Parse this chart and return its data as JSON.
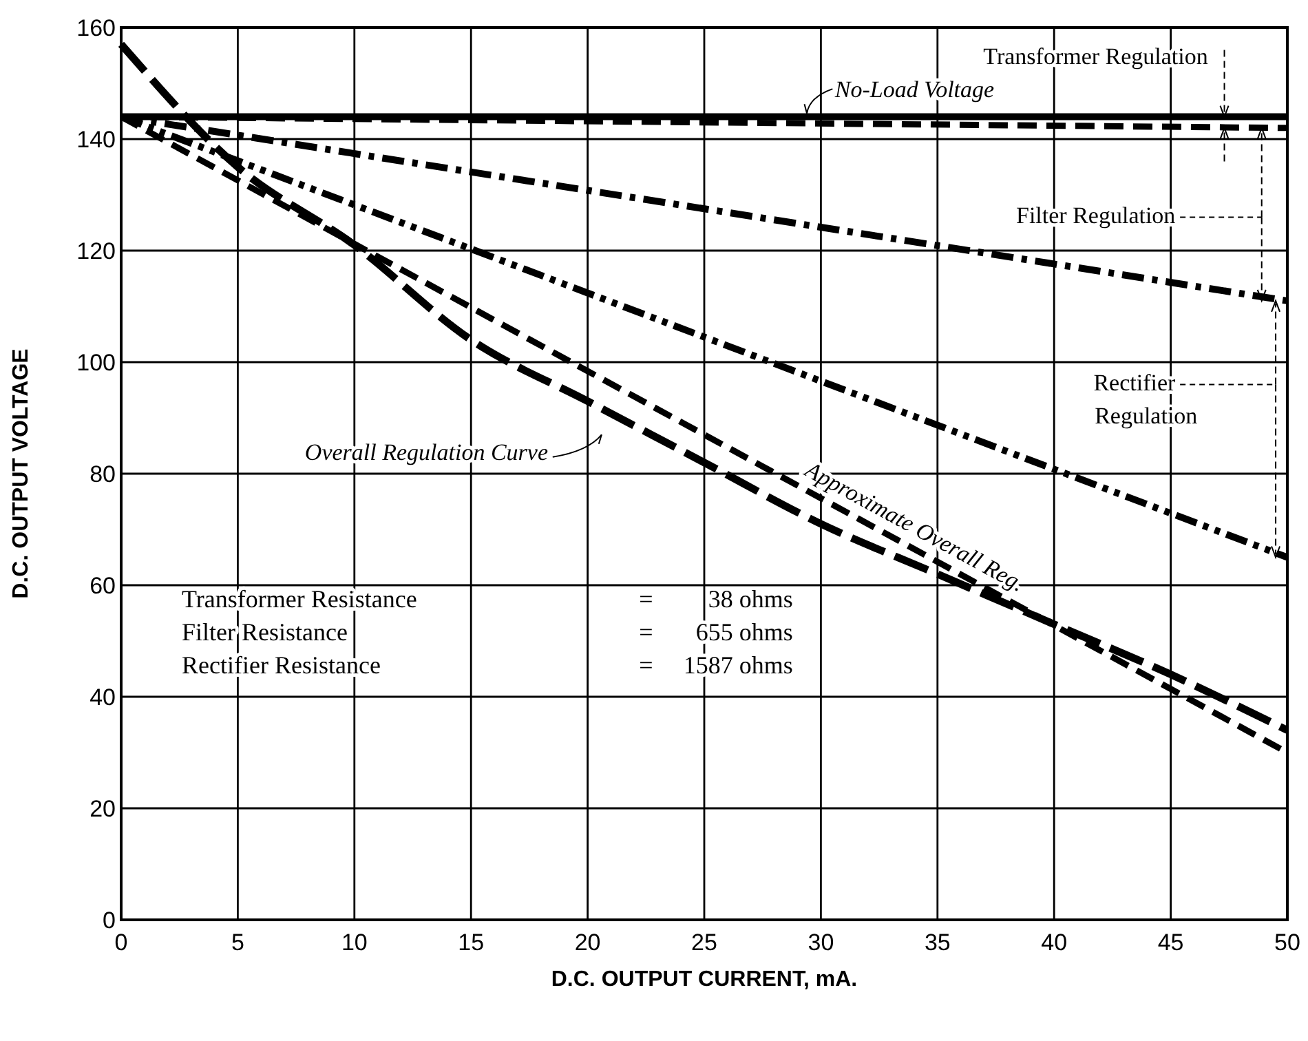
{
  "chart_data": {
    "type": "line",
    "xlabel": "D.C. OUTPUT CURRENT, mA.",
    "ylabel": "D.C. OUTPUT VOLTAGE",
    "xlim": [
      0,
      50
    ],
    "ylim": [
      0,
      160
    ],
    "xticks": [
      0,
      5,
      10,
      15,
      20,
      25,
      30,
      35,
      40,
      45,
      50
    ],
    "yticks": [
      0,
      20,
      40,
      60,
      80,
      100,
      120,
      140,
      160
    ],
    "grid": true,
    "series": [
      {
        "name": "No-Load Voltage",
        "color": "#000000",
        "x": [
          0,
          50
        ],
        "values": [
          144,
          144
        ],
        "line_style": "solid"
      },
      {
        "color": "#000000",
        "x": [
          0,
          50
        ],
        "values": [
          144,
          142
        ],
        "line_style": "dashed"
      },
      {
        "color": "#000000",
        "x": [
          0,
          50
        ],
        "values": [
          144,
          111
        ],
        "line_style": "dashdot"
      },
      {
        "color": "#000000",
        "x": [
          0,
          50
        ],
        "values": [
          144,
          65
        ],
        "line_style": "dashdotdot"
      },
      {
        "name": "Overall Regulation Curve",
        "color": "#000000",
        "x": [
          0,
          5,
          10,
          15,
          20,
          25,
          30,
          35,
          40,
          45,
          50
        ],
        "values": [
          157,
          135,
          121,
          104,
          93,
          82,
          71,
          62,
          53,
          44,
          34
        ],
        "line_style": "longdash"
      },
      {
        "name": "Approximate Overall Reg.",
        "color": "#000000",
        "x": [
          0,
          50
        ],
        "values": [
          144,
          30
        ],
        "line_style": "dashed"
      }
    ],
    "annotations": [
      {
        "text": "Transformer Regulation",
        "x": 47.3,
        "y": 144
      },
      "Filter Regulation",
      "Rectifier\nRegulation",
      "Transformer Resistance = 38 ohms",
      "Filter Resistance = 655 ohms",
      "Rectifier Resistance = 1587 ohms"
    ]
  }
}
